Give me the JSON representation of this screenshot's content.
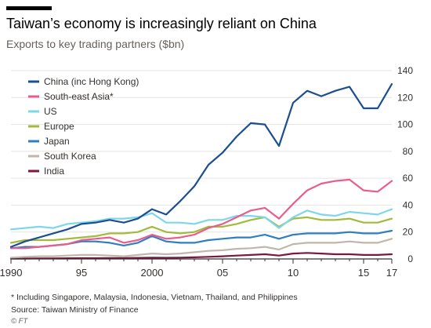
{
  "header": {
    "title": "Taiwan’s economy is increasingly reliant on China",
    "subtitle": "Exports to key trading partners ($bn)"
  },
  "footer": {
    "footnote": "* Including Singapore, Malaysia, Indonesia, Vietnam, Thailand, and Philippines",
    "source": "Source: Taiwan Ministry of Finance",
    "credit": "© FT"
  },
  "chart_data": {
    "type": "line",
    "title": "Taiwan’s economy is increasingly reliant on China",
    "subtitle": "Exports to key trading partners ($bn)",
    "xlabel": "",
    "ylabel": "",
    "x": [
      1990,
      1991,
      1992,
      1993,
      1994,
      1995,
      1996,
      1997,
      1998,
      1999,
      2000,
      2001,
      2002,
      2003,
      2004,
      2005,
      2006,
      2007,
      2008,
      2009,
      2010,
      2011,
      2012,
      2013,
      2014,
      2015,
      2016,
      2017
    ],
    "xlim": [
      1990,
      2017
    ],
    "ylim": [
      0,
      140
    ],
    "x_ticks": [
      1990,
      1995,
      2000,
      2005,
      2010,
      2015,
      2017
    ],
    "x_tick_labels": [
      "1990",
      "95",
      "2000",
      "05",
      "10",
      "15",
      "17"
    ],
    "y_ticks": [
      0,
      20,
      40,
      60,
      80,
      100,
      120,
      140
    ],
    "y_axis_side": "right",
    "grid": true,
    "legend_position": "top-left",
    "series": [
      {
        "name": "China (inc Hong Kong)",
        "color": "#1b4f91",
        "values": [
          9,
          13,
          16,
          19,
          22,
          26,
          27,
          29,
          27,
          30,
          37,
          33,
          43,
          54,
          70,
          79,
          91,
          101,
          100,
          84,
          116,
          125,
          121,
          125,
          128,
          112,
          112,
          130
        ]
      },
      {
        "name": "South-east Asia*",
        "color": "#e95d8c",
        "values": [
          8,
          8,
          9,
          10,
          11,
          14,
          15,
          16,
          12,
          14,
          18,
          15,
          16,
          18,
          23,
          26,
          31,
          36,
          38,
          30,
          41,
          51,
          56,
          58,
          59,
          51,
          50,
          58
        ]
      },
      {
        "name": "US",
        "color": "#7ed7e8",
        "values": [
          22,
          23,
          24,
          23,
          26,
          27,
          28,
          30,
          30,
          31,
          34,
          27,
          27,
          26,
          29,
          29,
          32,
          32,
          31,
          23,
          31,
          36,
          33,
          32,
          35,
          34,
          33,
          37
        ]
      },
      {
        "name": "Europe",
        "color": "#a2ba3b",
        "values": [
          12,
          14,
          14,
          14,
          15,
          16,
          17,
          19,
          19,
          20,
          24,
          20,
          19,
          20,
          24,
          24,
          26,
          29,
          31,
          24,
          30,
          31,
          29,
          29,
          30,
          27,
          27,
          30
        ]
      },
      {
        "name": "Japan",
        "color": "#2e7ec2",
        "values": [
          8,
          9,
          9,
          10,
          11,
          13,
          13,
          12,
          10,
          12,
          17,
          13,
          12,
          12,
          14,
          15,
          16,
          16,
          18,
          15,
          18,
          19,
          19,
          19,
          20,
          19,
          19,
          21
        ]
      },
      {
        "name": "South Korea",
        "color": "#c2b6ac",
        "values": [
          1,
          1.5,
          2,
          2,
          2.5,
          3,
          3,
          2.5,
          2,
          3,
          4,
          3.5,
          4,
          5,
          6,
          6.5,
          7.5,
          8,
          9,
          7,
          11,
          12,
          12,
          12,
          13,
          12,
          12,
          15
        ]
      },
      {
        "name": "India",
        "color": "#7d1640",
        "values": [
          0.3,
          0.3,
          0.4,
          0.4,
          0.5,
          0.6,
          0.6,
          0.7,
          0.7,
          0.8,
          1,
          0.9,
          1,
          1.2,
          1.6,
          2,
          2.5,
          3,
          3.5,
          2.5,
          4,
          4.5,
          4,
          3.5,
          3.5,
          3,
          3,
          3.5
        ]
      }
    ]
  }
}
